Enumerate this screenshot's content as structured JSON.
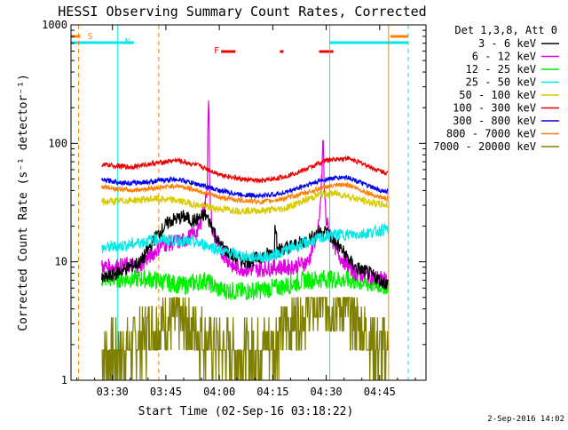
{
  "chart_data": {
    "type": "line",
    "title": "HESSI Observing Summary Count Rates, Corrected",
    "xlabel": "Start Time (02-Sep-16 03:18:22)",
    "ylabel": "Corrected Count Rate (s⁻¹ detector⁻¹)",
    "x_ticks": [
      "03:30",
      "03:45",
      "04:00",
      "04:15",
      "04:30",
      "04:45"
    ],
    "x_tick_minutes": [
      30,
      45,
      60,
      75,
      90,
      105
    ],
    "x_range_minutes": [
      18.37,
      118
    ],
    "y_scale": "log",
    "ylim": [
      1,
      1000
    ],
    "y_tick_labels": [
      "1",
      "10",
      "100",
      "1000"
    ],
    "y_tick_values": [
      1,
      10,
      100,
      1000
    ],
    "legend": {
      "header": "Det 1,3,8, Att 0",
      "position": "right"
    },
    "series": [
      {
        "name": "3 - 6 keV",
        "color": "#000000",
        "x": [
          27,
          38,
          42,
          46,
          50,
          53,
          56,
          58,
          60,
          64,
          68,
          72,
          75,
          78,
          82,
          86,
          88,
          90,
          94,
          98,
          102,
          105,
          107
        ],
        "y": [
          7,
          10,
          16,
          22,
          24,
          22,
          25,
          20,
          14,
          11,
          10,
          11,
          12,
          13,
          14,
          16,
          18,
          18,
          13,
          9,
          8,
          7,
          6.5
        ]
      },
      {
        "name": "6 - 12 keV",
        "color": "#e000e0",
        "x": [
          27,
          38,
          44,
          50,
          54,
          56,
          57,
          58,
          60,
          64,
          70,
          75,
          80,
          85,
          88,
          89,
          90,
          93,
          98,
          103,
          107
        ],
        "y": [
          9,
          9.5,
          14,
          15,
          18,
          30,
          60,
          18,
          13,
          9,
          8.5,
          9,
          9,
          10,
          20,
          70,
          22,
          12,
          8,
          7.5,
          7
        ]
      },
      {
        "name": "12 - 25 keV",
        "color": "#00ee00",
        "x": [
          27,
          40,
          50,
          56,
          60,
          66,
          72,
          78,
          84,
          90,
          96,
          102,
          107
        ],
        "y": [
          7.2,
          7.2,
          6.3,
          7,
          5.8,
          5.6,
          5.8,
          6.2,
          7,
          7.2,
          7,
          6.5,
          6.3
        ]
      },
      {
        "name": "25 - 50 keV",
        "color": "#00e8e8",
        "x": [
          27,
          35,
          42,
          50,
          56,
          62,
          68,
          74,
          80,
          86,
          92,
          98,
          104,
          107
        ],
        "y": [
          13,
          14,
          15.5,
          15,
          14,
          12,
          11,
          11,
          13,
          15,
          17,
          17,
          18,
          19
        ]
      },
      {
        "name": "50 - 100 keV",
        "color": "#d8cc00",
        "x": [
          27,
          35,
          42,
          48,
          54,
          60,
          66,
          72,
          78,
          84,
          88,
          92,
          96,
          100,
          104,
          107
        ],
        "y": [
          32,
          33,
          34,
          33,
          30,
          28,
          27,
          27,
          28,
          33,
          37,
          38,
          36,
          33,
          31,
          30
        ]
      },
      {
        "name": "100 - 300 keV",
        "color": "#ee0000",
        "x": [
          27,
          35,
          42,
          48,
          54,
          60,
          66,
          72,
          78,
          84,
          90,
          96,
          100,
          104,
          107
        ],
        "y": [
          66,
          63,
          68,
          72,
          65,
          55,
          50,
          48,
          52,
          60,
          72,
          75,
          68,
          60,
          56
        ]
      },
      {
        "name": "300 - 800 keV",
        "color": "#0000ee",
        "x": [
          27,
          35,
          42,
          48,
          54,
          60,
          66,
          72,
          78,
          84,
          90,
          96,
          100,
          104,
          107
        ],
        "y": [
          49,
          46,
          48,
          50,
          45,
          40,
          37,
          36,
          38,
          44,
          50,
          52,
          46,
          41,
          39
        ]
      },
      {
        "name": "800 - 7000 keV",
        "color": "#ff8000",
        "x": [
          27,
          35,
          42,
          48,
          54,
          60,
          66,
          72,
          78,
          84,
          90,
          96,
          100,
          104,
          107
        ],
        "y": [
          43,
          40,
          42,
          44,
          40,
          35,
          33,
          32,
          34,
          38,
          43,
          45,
          40,
          36,
          34
        ]
      },
      {
        "name": "7000 - 20000 keV",
        "color": "#808000",
        "x": [
          27,
          30,
          34,
          38,
          42,
          46,
          50,
          54,
          58,
          62,
          66,
          70,
          74,
          78,
          82,
          86,
          90,
          94,
          98,
          102,
          106
        ],
        "y": [
          1.8,
          1.7,
          1.8,
          2.2,
          2.8,
          3.3,
          3.2,
          2.5,
          2.0,
          1.8,
          1.7,
          1.8,
          2.0,
          2.6,
          3.4,
          4.2,
          4.6,
          4.3,
          3.2,
          2.2,
          1.8
        ]
      }
    ],
    "annotations": [
      {
        "label": "S",
        "color": "#ff8000"
      },
      {
        "label": "N",
        "color": "#00e8e8"
      },
      {
        "label": "F",
        "color": "#ee0000"
      }
    ],
    "attenuator_line_minutes": [
      20.5,
      31.5,
      43.0,
      91.0,
      107.5,
      113.0
    ],
    "flare_bars_minutes": [
      [
        60.5,
        64.5
      ],
      [
        77,
        78
      ],
      [
        88,
        92
      ]
    ],
    "saa_bars_minutes": [
      [
        18.4,
        21.0
      ],
      [
        108,
        113
      ]
    ],
    "night_bars_minutes": [
      [
        18.4,
        36.0
      ],
      [
        91,
        113
      ]
    ]
  },
  "footer_date": "2-Sep-2016 14:02"
}
